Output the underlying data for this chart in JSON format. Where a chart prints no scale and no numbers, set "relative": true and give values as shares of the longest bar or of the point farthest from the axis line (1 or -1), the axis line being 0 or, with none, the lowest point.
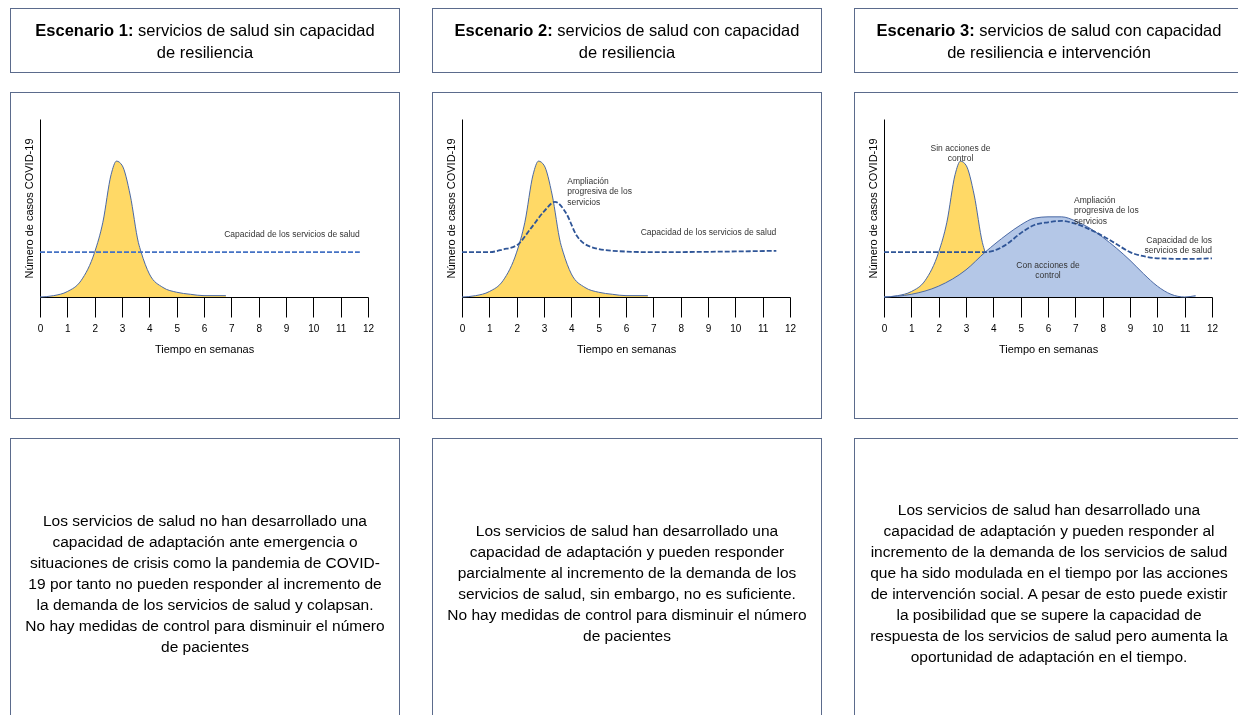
{
  "chart_data": [
    {
      "type": "area",
      "title": "Escenario 1: servicios de salud sin capacidad de resiliencia",
      "xlabel": "Tiempo en semanas",
      "ylabel": "Número de casos COVID-19",
      "relative": true,
      "xlim": [
        0,
        12
      ],
      "xticks": [
        0,
        1,
        2,
        3,
        4,
        5,
        6,
        7,
        8,
        9,
        10,
        11,
        12
      ],
      "series": [
        {
          "type": "area",
          "color": "#ffd966",
          "x": [
            0,
            0.5,
            1,
            1.5,
            2,
            2.3,
            2.6,
            2.8,
            3,
            3.3,
            3.6,
            3.7,
            4,
            4.5,
            5,
            5.5,
            6,
            6.8
          ],
          "values": [
            0,
            0.01,
            0.04,
            0.12,
            0.33,
            0.55,
            0.9,
            1,
            0.97,
            0.75,
            0.4,
            0.33,
            0.17,
            0.07,
            0.035,
            0.02,
            0.01,
            0.01
          ]
        },
        {
          "type": "line",
          "name": "Capacidad de los servicios de salud",
          "color": "#4472c4",
          "line_style": "dashed",
          "x": [
            0,
            11.7
          ],
          "values": [
            0.33,
            0.33
          ]
        }
      ],
      "annotations": [
        "Los servicios de salud no han desarrollado una capacidad de adaptación ante emergencia o situaciones de crisis como la pandemia de COVID-19 por tanto no pueden responder al incremento de la demanda de los servicios de salud y colapsan. No hay medidas de control para disminuir el número de pacientes"
      ]
    },
    {
      "type": "area",
      "title": "Escenario 2: servicios de salud con capacidad de resiliencia",
      "xlabel": "Tiempo en semanas",
      "ylabel": "Número de casos COVID-19",
      "relative": true,
      "xlim": [
        0,
        12
      ],
      "xticks": [
        0,
        1,
        2,
        3,
        4,
        5,
        6,
        7,
        8,
        9,
        10,
        11,
        12
      ],
      "series": [
        {
          "type": "area",
          "color": "#ffd966",
          "x": [
            0,
            0.5,
            1,
            1.5,
            2,
            2.3,
            2.6,
            2.8,
            3,
            3.3,
            3.6,
            3.7,
            4,
            4.5,
            5,
            5.5,
            6,
            6.8
          ],
          "values": [
            0,
            0.01,
            0.04,
            0.12,
            0.33,
            0.55,
            0.9,
            1,
            0.97,
            0.75,
            0.4,
            0.33,
            0.17,
            0.07,
            0.035,
            0.02,
            0.01,
            0.01
          ]
        },
        {
          "type": "line",
          "name": "Capacidad de los servicios de salud",
          "color": "#2f5597",
          "line_style": "dashed",
          "x": [
            0,
            1,
            1.5,
            2,
            2.5,
            3,
            3.4,
            3.8,
            4.2,
            4.7,
            5.5,
            7,
            11.5
          ],
          "values": [
            0.33,
            0.33,
            0.35,
            0.38,
            0.5,
            0.63,
            0.7,
            0.62,
            0.45,
            0.37,
            0.34,
            0.33,
            0.34
          ]
        }
      ],
      "annotations": [
        "Ampliación progresiva de los servicios",
        "Los servicios de salud han desarrollado una capacidad de adaptación y pueden responder parcialmente al incremento de la demanda de los servicios de salud, sin embargo, no es suficiente. No hay medidas de control para disminuir el número de pacientes"
      ]
    },
    {
      "type": "area",
      "title": "Escenario 3: servicios de salud con capacidad de resiliencia e intervención",
      "xlabel": "Tiempo en semanas",
      "ylabel": "Número de casos COVID-19",
      "relative": true,
      "xlim": [
        0,
        12
      ],
      "xticks": [
        0,
        1,
        2,
        3,
        4,
        5,
        6,
        7,
        8,
        9,
        10,
        11,
        12
      ],
      "series": [
        {
          "type": "area",
          "name": "Sin acciones de control",
          "color": "#ffd966",
          "x": [
            0,
            0.5,
            1,
            1.5,
            2,
            2.3,
            2.6,
            2.8,
            3,
            3.3,
            3.6,
            3.7
          ],
          "values": [
            0,
            0.01,
            0.04,
            0.12,
            0.33,
            0.55,
            0.9,
            1,
            0.97,
            0.75,
            0.4,
            0.33
          ]
        },
        {
          "type": "area",
          "name": "Con acciones de control",
          "color": "#b4c7e7",
          "x": [
            0,
            1,
            2,
            3,
            3.7,
            4.5,
            5,
            5.5,
            6,
            6.5,
            7,
            7.5,
            8,
            8.5,
            9,
            9.5,
            10,
            10.5,
            11,
            11.4
          ],
          "values": [
            0,
            0.02,
            0.08,
            0.2,
            0.33,
            0.46,
            0.53,
            0.58,
            0.59,
            0.59,
            0.56,
            0.51,
            0.44,
            0.36,
            0.27,
            0.17,
            0.08,
            0.02,
            0,
            0.01
          ]
        },
        {
          "type": "line",
          "name": "Capacidad de los servicios de salud",
          "color": "#2f5597",
          "line_style": "dashed",
          "x": [
            0,
            3,
            3.7,
            4,
            4.5,
            5,
            5.5,
            6,
            6.5,
            7,
            7.5,
            8,
            8.5,
            9,
            9.5,
            10,
            11,
            12
          ],
          "values": [
            0.33,
            0.33,
            0.33,
            0.34,
            0.39,
            0.47,
            0.53,
            0.55,
            0.56,
            0.54,
            0.5,
            0.45,
            0.39,
            0.33,
            0.3,
            0.285,
            0.28,
            0.285
          ]
        }
      ],
      "annotations": [
        "Ampliación progresiva de los servicios",
        "Los servicios de salud han desarrollado una capacidad de adaptación y pueden responder al incremento de la demanda de los servicios de salud que ha sido modulada en el tiempo por las acciones de intervención social. A pesar de esto puede existir la posibilidad que se supere la capacidad de respuesta de los servicios de salud pero aumenta la oportunidad de adaptación en el tiempo."
      ]
    }
  ]
}
